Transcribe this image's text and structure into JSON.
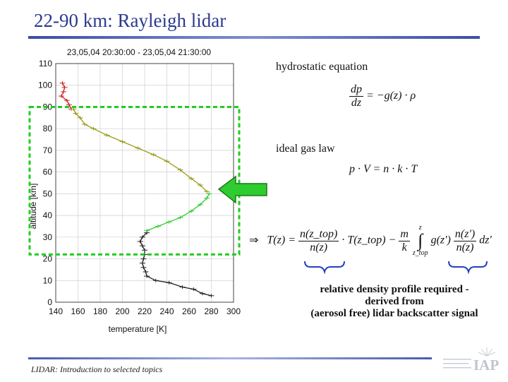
{
  "slide": {
    "title": "22-90 km: Rayleigh lidar",
    "footer": "LIDAR: Introduction to selected topics"
  },
  "annotations": {
    "hydrostatic_label": "hydrostatic equation",
    "ideal_gas_label": "ideal gas law",
    "conclusion_line1": "relative density profile required -",
    "conclusion_line2": "derived from",
    "conclusion_line3": "(aerosol free) lidar backscatter signal"
  },
  "equations": {
    "hydro_num": "dp",
    "hydro_den": "dz",
    "hydro_rhs": "= −g(z) · ρ",
    "gas": "p · V = n · k · T",
    "implies": "⇒",
    "t_lhs": "T(z) =",
    "t_f1_num": "n(z_top)",
    "t_f1_den": "n(z)",
    "t_mid": "· T(z_top) −",
    "t_f2_num": "m",
    "t_f2_den": "k",
    "t_int_top": "z",
    "t_int_bottom": "z_top",
    "t_g": "g(z')",
    "t_f3_num": "n(z')",
    "t_f3_den": "n(z)",
    "t_dz": "dz'"
  },
  "logo": {
    "text": "IAP"
  },
  "chart_data": {
    "type": "line",
    "title": "23,05,04 20:30:00 - 23,05,04 21:30:00",
    "xlabel": "temperature [K]",
    "ylabel": "altitude [km]",
    "xlim": [
      140,
      300
    ],
    "ylim": [
      0,
      110
    ],
    "xticks": [
      140,
      160,
      180,
      200,
      220,
      240,
      260,
      280,
      300
    ],
    "yticks": [
      0,
      10,
      20,
      30,
      40,
      50,
      60,
      70,
      80,
      90,
      100,
      110
    ],
    "grid": true,
    "highlight_box_km": [
      22,
      90
    ],
    "series": [
      {
        "color": "#cc2222",
        "points": [
          [
            146,
            101
          ],
          [
            148,
            99
          ],
          [
            147,
            97
          ],
          [
            145,
            95
          ],
          [
            150,
            93
          ],
          [
            152,
            91
          ],
          [
            154,
            89
          ]
        ]
      },
      {
        "color": "#9a9a1a",
        "points": [
          [
            156,
            89
          ],
          [
            158,
            87
          ],
          [
            162,
            85
          ],
          [
            166,
            82
          ],
          [
            174,
            80
          ],
          [
            186,
            77
          ],
          [
            200,
            74
          ],
          [
            214,
            71
          ],
          [
            228,
            68
          ],
          [
            240,
            65
          ],
          [
            252,
            61
          ],
          [
            262,
            57
          ],
          [
            270,
            54
          ],
          [
            276,
            51
          ]
        ]
      },
      {
        "color": "#33cc33",
        "points": [
          [
            278,
            50
          ],
          [
            276,
            48
          ],
          [
            270,
            45
          ],
          [
            262,
            42
          ],
          [
            252,
            39
          ],
          [
            242,
            37
          ],
          [
            232,
            35
          ],
          [
            222,
            33
          ]
        ]
      },
      {
        "color": "#222222",
        "points": [
          [
            222,
            32
          ],
          [
            218,
            30
          ],
          [
            216,
            28
          ],
          [
            218,
            26
          ],
          [
            220,
            24
          ],
          [
            220,
            22
          ],
          [
            219,
            20
          ],
          [
            218,
            18
          ],
          [
            219,
            16
          ],
          [
            221,
            14
          ],
          [
            222,
            12
          ],
          [
            230,
            10
          ],
          [
            242,
            9
          ],
          [
            254,
            7
          ],
          [
            264,
            6
          ],
          [
            272,
            4
          ],
          [
            280,
            3
          ]
        ]
      }
    ]
  }
}
